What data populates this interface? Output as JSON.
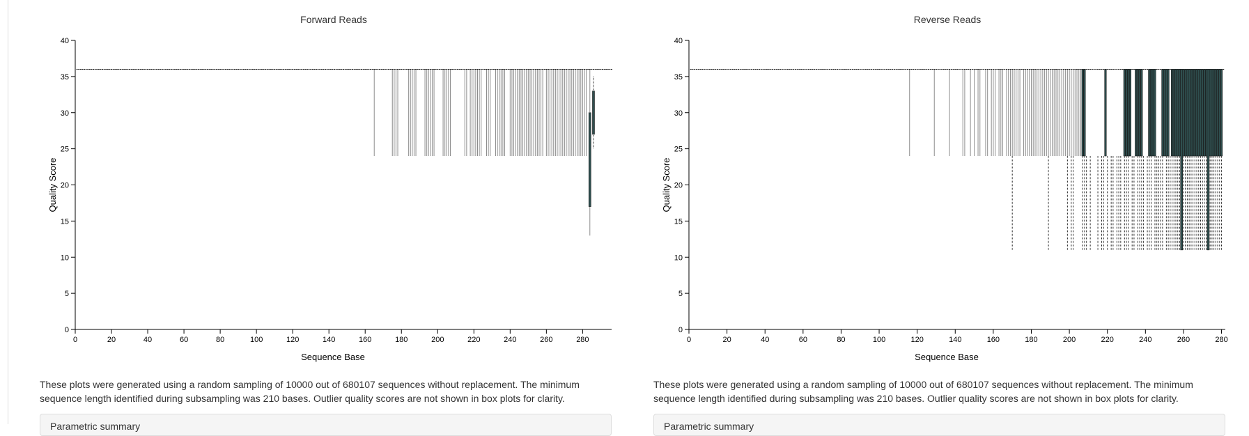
{
  "panels": [
    {
      "caption": "These plots were generated using a random sampling of 10000 out of 680107 sequences without replacement. The minimum sequence length identified during subsampling was 210 bases. Outlier quality scores are not shown in box plots for clarity.",
      "note": "Parametric summary"
    },
    {
      "caption": "These plots were generated using a random sampling of 10000 out of 680107 sequences without replacement. The minimum sequence length identified during subsampling was 210 bases. Outlier quality scores are not shown in box plots for clarity.",
      "note": "Parametric summary"
    }
  ],
  "colors": {
    "mark": "#1a1a1a",
    "box_fill": "#2f4f4f",
    "axis": "#000000"
  },
  "chart_data": [
    {
      "type": "box",
      "title": "Forward Reads",
      "xlabel": "Sequence Base",
      "ylabel": "Quality Score",
      "xlim": [
        0,
        296
      ],
      "ylim": [
        0,
        40
      ],
      "xticks": [
        0,
        20,
        40,
        60,
        80,
        100,
        120,
        140,
        160,
        180,
        200,
        220,
        240,
        260,
        280
      ],
      "yticks": [
        0,
        5,
        10,
        15,
        20,
        25,
        30,
        35,
        40
      ],
      "baseline_median": 36,
      "baseline_range": [
        1,
        296
      ],
      "outlier_positions_q24": [
        165,
        175,
        176,
        177,
        178,
        184,
        185,
        186,
        187,
        188,
        193,
        194,
        195,
        196,
        197,
        198,
        203,
        204,
        205,
        206,
        207,
        215,
        216,
        218,
        219,
        220,
        221,
        222,
        223,
        224,
        227,
        228,
        229,
        232,
        233,
        234,
        235,
        236,
        237,
        240,
        241,
        242,
        243,
        244,
        245,
        246,
        247,
        248,
        249,
        250,
        251,
        252,
        253,
        254,
        255,
        256,
        257,
        258,
        260,
        261,
        262,
        263,
        264,
        265,
        266,
        267,
        268,
        269,
        270,
        271,
        272,
        273,
        274,
        275,
        276,
        277,
        278,
        279,
        280,
        281,
        282
      ],
      "boxes": [
        {
          "x": 284,
          "whisker_low": 13,
          "q1": 17,
          "median": 24,
          "q3": 30,
          "whisker_high": 36
        },
        {
          "x": 286,
          "whisker_low": 25,
          "q1": 27,
          "median": 30,
          "q3": 33,
          "whisker_high": 35
        }
      ]
    },
    {
      "type": "box",
      "title": "Reverse Reads",
      "xlabel": "Sequence Base",
      "ylabel": "Quality Score",
      "xlim": [
        0,
        282
      ],
      "ylim": [
        0,
        40
      ],
      "xticks": [
        0,
        20,
        40,
        60,
        80,
        100,
        120,
        140,
        160,
        180,
        200,
        220,
        240,
        260,
        280
      ],
      "yticks": [
        0,
        5,
        10,
        15,
        20,
        25,
        30,
        35,
        40
      ],
      "baseline_median": 36,
      "baseline_range": [
        1,
        281
      ],
      "q24_positions": [
        116,
        129,
        137,
        144,
        145,
        148,
        150,
        152,
        153,
        156,
        157,
        159,
        160,
        161,
        163,
        164,
        165,
        167,
        168,
        169,
        170,
        171,
        172,
        173,
        174,
        176,
        177,
        178,
        179,
        180,
        181,
        182,
        183,
        184,
        185,
        186,
        187,
        188,
        189,
        190,
        191,
        192,
        193,
        194,
        195,
        196,
        197,
        198,
        199,
        200,
        201,
        202,
        203,
        204,
        205,
        206
      ],
      "q11_positions": [
        170,
        189,
        199,
        201,
        202,
        207,
        208,
        209,
        211,
        215,
        217,
        218,
        220,
        222,
        223,
        225,
        226,
        227,
        229,
        230,
        231,
        233,
        234,
        236,
        237,
        238,
        239,
        241,
        242,
        243,
        245,
        246,
        247,
        248,
        249,
        251,
        252,
        253,
        254,
        255,
        256,
        257,
        258,
        259,
        260,
        261,
        262,
        263,
        264,
        265,
        266,
        267,
        268,
        269,
        270,
        271,
        272,
        273,
        274,
        275,
        276,
        277,
        278,
        279,
        280
      ],
      "dense_box_positions": [
        207,
        208,
        219,
        229,
        230,
        231,
        232,
        235,
        236,
        237,
        238,
        242,
        243,
        244,
        245,
        249,
        250,
        251,
        252,
        254,
        255,
        256,
        257,
        258,
        259,
        260,
        261,
        262,
        263,
        264,
        265,
        266,
        267,
        268,
        269,
        270,
        271,
        272,
        273,
        274,
        275,
        276,
        277,
        278,
        279,
        280
      ],
      "dense_box": {
        "q1": 24,
        "q3": 36
      },
      "highlight_full_boxes": [
        259,
        273
      ]
    }
  ]
}
